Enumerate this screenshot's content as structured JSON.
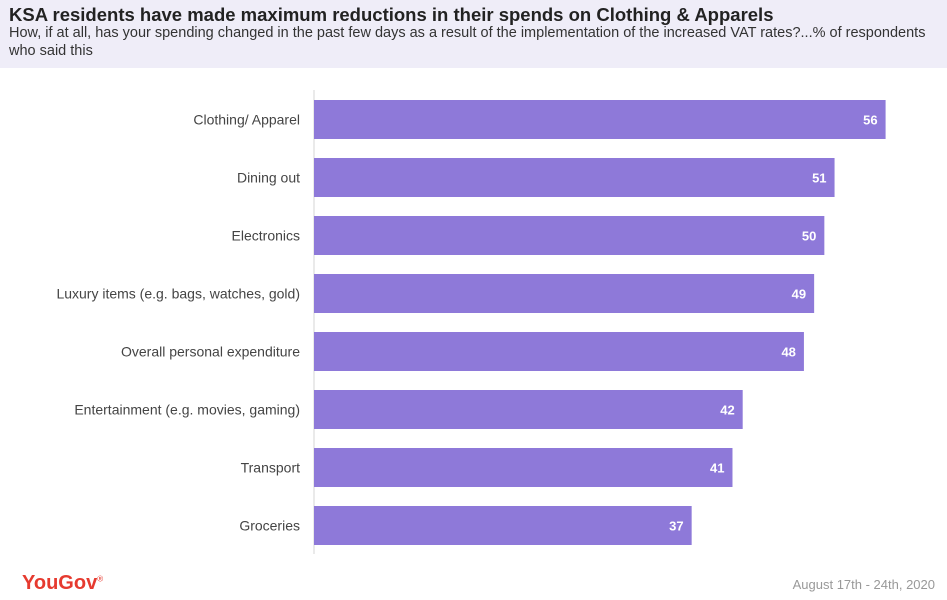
{
  "header": {
    "title": "KSA residents have made maximum reductions in their spends on Clothing & Apparels",
    "subtitle": "How, if at all, has your spending changed in the past few days as a result of the implementation of the increased VAT rates?...% of respondents who said this"
  },
  "footer": {
    "logo": "YouGov",
    "date": "August 17th - 24th, 2020"
  },
  "colors": {
    "bar": "#8e79d9",
    "header_bg": "#efedf8",
    "logo": "#e63a2f"
  },
  "chart_data": {
    "type": "bar",
    "orientation": "horizontal",
    "categories": [
      "Clothing/ Apparel",
      "Dining out",
      "Electronics",
      "Luxury items (e.g. bags, watches, gold)",
      "Overall personal expenditure",
      "Entertainment (e.g. movies, gaming)",
      "Transport",
      "Groceries"
    ],
    "values": [
      56,
      51,
      50,
      49,
      48,
      42,
      41,
      37
    ],
    "data_labels": [
      "56",
      "51",
      "50",
      "49",
      "48",
      "42",
      "41",
      "37"
    ],
    "title": "",
    "xlabel": "",
    "ylabel": "",
    "xlim": [
      0,
      58
    ],
    "grid": false,
    "legend": "none"
  }
}
